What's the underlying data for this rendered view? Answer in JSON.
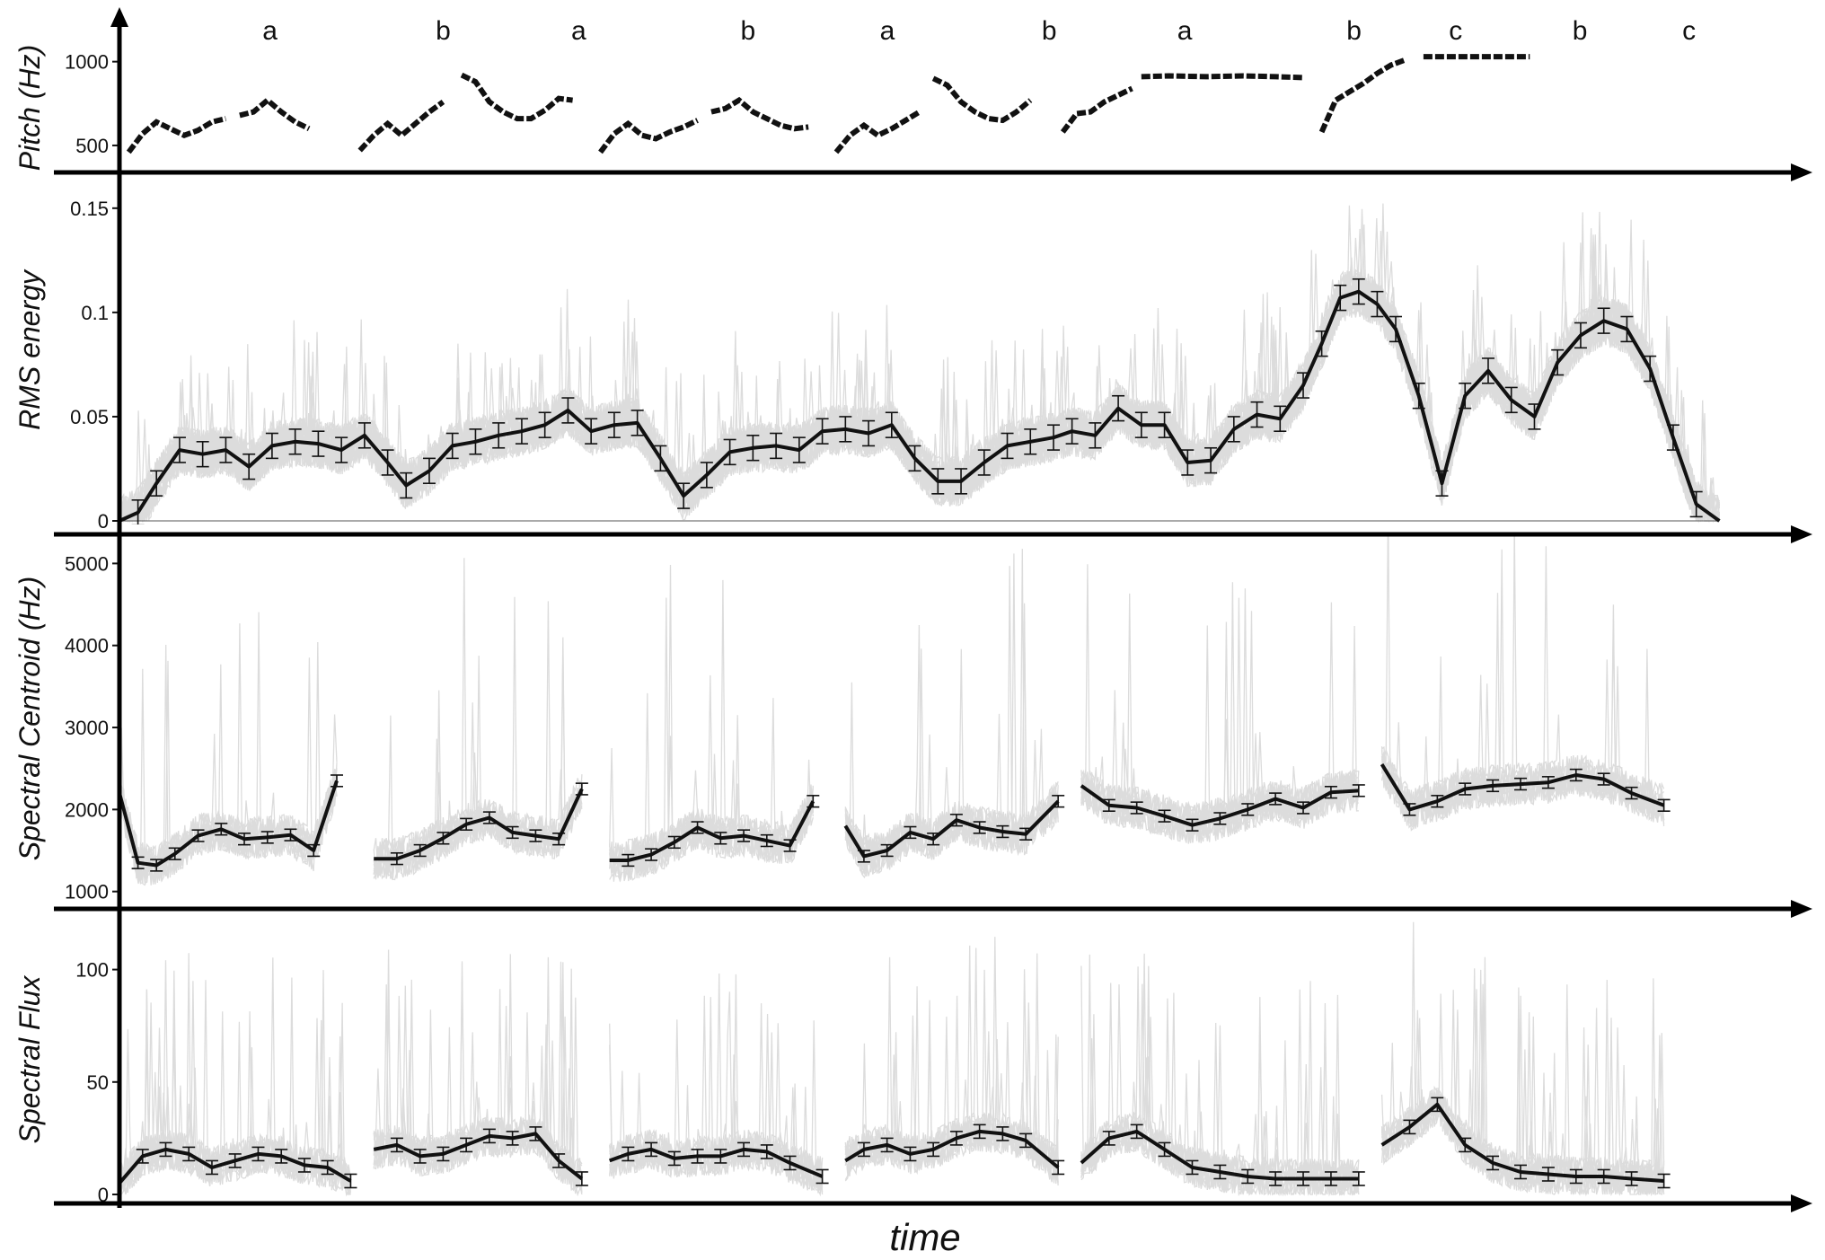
{
  "chart_data": {
    "type": "line",
    "xlabel": "time",
    "sections": [
      "a",
      "b",
      "a",
      "b",
      "a",
      "b",
      "a",
      "b",
      "c",
      "b",
      "c"
    ],
    "panels": [
      {
        "id": "pitch",
        "ylabel": "Pitch (Hz)",
        "ylim": [
          430,
          1100
        ],
        "yticks": [
          500,
          1000
        ],
        "segments": [
          {
            "x": [
              0.02,
              0.05,
              0.08,
              0.11,
              0.14,
              0.17,
              0.2,
              0.23
            ],
            "y": [
              460,
              570,
              640,
              600,
              560,
              590,
              640,
              660
            ]
          },
          {
            "x": [
              0.26,
              0.29,
              0.32,
              0.35,
              0.38,
              0.41
            ],
            "y": [
              680,
              700,
              770,
              700,
              640,
              600
            ]
          },
          {
            "x": [
              0.52,
              0.55,
              0.58,
              0.61,
              0.64,
              0.67,
              0.7
            ],
            "y": [
              470,
              560,
              630,
              560,
              630,
              700,
              760
            ]
          },
          {
            "x": [
              0.74,
              0.77,
              0.8,
              0.83,
              0.86,
              0.89,
              0.92,
              0.95,
              0.98
            ],
            "y": [
              920,
              880,
              760,
              700,
              660,
              660,
              710,
              780,
              770
            ]
          },
          {
            "x": [
              1.04,
              1.07,
              1.1,
              1.13,
              1.16,
              1.19,
              1.22,
              1.25
            ],
            "y": [
              460,
              570,
              630,
              560,
              540,
              580,
              610,
              650
            ]
          },
          {
            "x": [
              1.28,
              1.31,
              1.34,
              1.37,
              1.4,
              1.43,
              1.46,
              1.49
            ],
            "y": [
              700,
              720,
              770,
              700,
              660,
              620,
              600,
              610
            ]
          },
          {
            "x": [
              1.55,
              1.58,
              1.61,
              1.64,
              1.67,
              1.7,
              1.73
            ],
            "y": [
              460,
              560,
              620,
              560,
              600,
              650,
              700
            ]
          },
          {
            "x": [
              1.76,
              1.79,
              1.82,
              1.85,
              1.88,
              1.91,
              1.94,
              1.97
            ],
            "y": [
              900,
              860,
              760,
              700,
              660,
              650,
              700,
              770
            ]
          },
          {
            "x": [
              2.04,
              2.07,
              2.1,
              2.13,
              2.16,
              2.19
            ],
            "y": [
              580,
              690,
              700,
              760,
              800,
              840
            ]
          },
          {
            "x": [
              2.21,
              2.27,
              2.35,
              2.43,
              2.5,
              2.56
            ],
            "y": [
              910,
              915,
              910,
              915,
              910,
              905
            ]
          },
          {
            "x": [
              2.6,
              2.63,
              2.66,
              2.69,
              2.72,
              2.75,
              2.78
            ],
            "y": [
              580,
              770,
              820,
              870,
              930,
              980,
              1010
            ]
          },
          {
            "x": [
              2.82,
              2.9,
              2.98,
              3.05
            ],
            "y": [
              1030,
              1030,
              1030,
              1030
            ]
          }
        ]
      },
      {
        "id": "rms",
        "ylabel": "RMS energy",
        "ylim": [
          0,
          0.165
        ],
        "yticks": [
          0,
          0.05,
          0.1,
          0.15
        ],
        "ytick_labels": [
          "0",
          "0.05",
          "0.1",
          "0.15"
        ],
        "mean": {
          "x": [
            0.0,
            0.04,
            0.08,
            0.13,
            0.18,
            0.23,
            0.28,
            0.33,
            0.38,
            0.43,
            0.48,
            0.53,
            0.58,
            0.62,
            0.67,
            0.72,
            0.77,
            0.82,
            0.87,
            0.92,
            0.97,
            1.02,
            1.07,
            1.12,
            1.17,
            1.22,
            1.27,
            1.32,
            1.37,
            1.42,
            1.47,
            1.52,
            1.57,
            1.62,
            1.67,
            1.72,
            1.77,
            1.82,
            1.87,
            1.92,
            1.97,
            2.02,
            2.06,
            2.11,
            2.16,
            2.21,
            2.26,
            2.31,
            2.36,
            2.41,
            2.46,
            2.51,
            2.56,
            2.6,
            2.64,
            2.68,
            2.72,
            2.76,
            2.81,
            2.86,
            2.91,
            2.96,
            3.01,
            3.06,
            3.11
          ],
          "y": [
            0.0,
            0.004,
            0.018,
            0.034,
            0.032,
            0.034,
            0.026,
            0.036,
            0.038,
            0.037,
            0.034,
            0.041,
            0.028,
            0.017,
            0.024,
            0.036,
            0.038,
            0.041,
            0.043,
            0.046,
            0.053,
            0.043,
            0.046,
            0.047,
            0.03,
            0.012,
            0.022,
            0.033,
            0.035,
            0.036,
            0.034,
            0.043,
            0.044,
            0.042,
            0.046,
            0.03,
            0.019,
            0.019,
            0.028,
            0.036,
            0.038,
            0.04,
            0.043,
            0.041,
            0.054,
            0.046,
            0.046,
            0.028,
            0.029,
            0.044,
            0.051,
            0.049,
            0.065,
            0.085,
            0.107,
            0.11,
            0.104,
            0.092,
            0.06,
            0.018,
            0.06,
            0.072,
            0.058,
            0.05,
            0.076
          ]
        },
        "mean_tail": {
          "x": [
            3.11,
            3.16,
            3.21,
            3.26,
            3.31,
            3.36,
            3.41,
            3.46
          ],
          "y": [
            0.076,
            0.089,
            0.096,
            0.092,
            0.073,
            0.04,
            0.008,
            0.0
          ]
        }
      },
      {
        "id": "centroid",
        "ylabel": "Spectral Centroid (Hz)",
        "ylim": [
          920,
          5300
        ],
        "yticks": [
          1000,
          2000,
          3000,
          4000,
          5000
        ],
        "segments": [
          {
            "x": [
              0.0,
              0.04,
              0.08,
              0.12,
              0.17,
              0.22,
              0.27,
              0.32,
              0.37,
              0.42,
              0.47
            ],
            "y": [
              2200,
              1350,
              1320,
              1460,
              1680,
              1760,
              1640,
              1660,
              1690,
              1500,
              2350
            ]
          },
          {
            "x": [
              0.55,
              0.6,
              0.65,
              0.7,
              0.75,
              0.8,
              0.85,
              0.9,
              0.95,
              1.0
            ],
            "y": [
              1400,
              1400,
              1500,
              1650,
              1820,
              1900,
              1720,
              1680,
              1640,
              2250
            ]
          },
          {
            "x": [
              1.06,
              1.1,
              1.15,
              1.2,
              1.25,
              1.3,
              1.35,
              1.4,
              1.45,
              1.5
            ],
            "y": [
              1380,
              1380,
              1450,
              1600,
              1780,
              1650,
              1680,
              1620,
              1560,
              2100
            ]
          },
          {
            "x": [
              1.57,
              1.61,
              1.66,
              1.71,
              1.76,
              1.81,
              1.86,
              1.91,
              1.96,
              2.03
            ],
            "y": [
              1800,
              1430,
              1500,
              1720,
              1640,
              1870,
              1780,
              1730,
              1700,
              2100
            ]
          },
          {
            "x": [
              2.08,
              2.14,
              2.2,
              2.26,
              2.32,
              2.38,
              2.44,
              2.5,
              2.56,
              2.62,
              2.68
            ],
            "y": [
              2290,
              2050,
              2020,
              1920,
              1810,
              1890,
              2000,
              2130,
              2020,
              2210,
              2230
            ]
          },
          {
            "x": [
              2.73,
              2.79,
              2.85,
              2.91,
              2.97,
              3.03,
              3.09,
              3.15,
              3.21,
              3.27,
              3.34
            ],
            "y": [
              2550,
              2000,
              2100,
              2250,
              2290,
              2310,
              2330,
              2420,
              2370,
              2200,
              2050
            ]
          }
        ]
      },
      {
        "id": "flux",
        "ylabel": "Spectral Flux",
        "ylim": [
          0,
          125
        ],
        "yticks": [
          0,
          50,
          100
        ],
        "segments": [
          {
            "x": [
              0.0,
              0.05,
              0.1,
              0.15,
              0.2,
              0.25,
              0.3,
              0.35,
              0.4,
              0.45,
              0.5
            ],
            "y": [
              5,
              17,
              20,
              18,
              12,
              15,
              18,
              17,
              13,
              12,
              6
            ]
          },
          {
            "x": [
              0.55,
              0.6,
              0.65,
              0.7,
              0.75,
              0.8,
              0.85,
              0.9,
              0.95,
              1.0
            ],
            "y": [
              20,
              22,
              17,
              18,
              22,
              26,
              25,
              27,
              15,
              7
            ]
          },
          {
            "x": [
              1.06,
              1.1,
              1.15,
              1.2,
              1.25,
              1.3,
              1.35,
              1.4,
              1.45,
              1.52
            ],
            "y": [
              15,
              18,
              20,
              16,
              17,
              17,
              20,
              19,
              14,
              8
            ]
          },
          {
            "x": [
              1.57,
              1.61,
              1.66,
              1.71,
              1.76,
              1.81,
              1.86,
              1.91,
              1.96,
              2.03
            ],
            "y": [
              15,
              20,
              22,
              18,
              20,
              25,
              28,
              27,
              24,
              12
            ]
          },
          {
            "x": [
              2.08,
              2.14,
              2.2,
              2.26,
              2.32,
              2.38,
              2.44,
              2.5,
              2.56,
              2.62,
              2.68
            ],
            "y": [
              14,
              25,
              28,
              20,
              12,
              10,
              8,
              7,
              7,
              7,
              7
            ]
          },
          {
            "x": [
              2.73,
              2.79,
              2.85,
              2.91,
              2.97,
              3.03,
              3.09,
              3.15,
              3.21,
              3.27,
              3.34
            ],
            "y": [
              22,
              30,
              40,
              22,
              14,
              10,
              9,
              8,
              8,
              7,
              6
            ]
          }
        ]
      }
    ]
  }
}
